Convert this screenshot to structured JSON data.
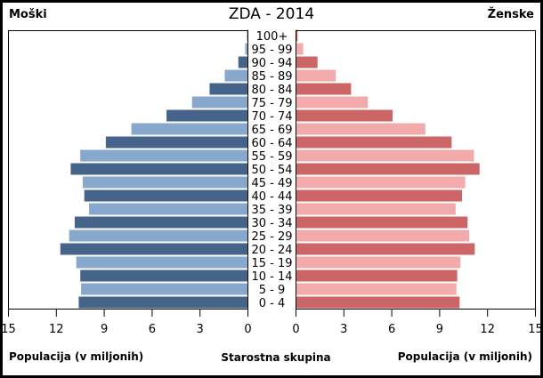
{
  "chart_data": {
    "type": "bar",
    "subtype": "population-pyramid",
    "title": "ZDA - 2014",
    "left_label": "Moški",
    "right_label": "Ženske",
    "xlabel_left": "Populacija (v miljonih)",
    "xlabel_center": "Starostna skupina",
    "xlabel_right": "Populacija (v miljonih)",
    "xlim": [
      0,
      15
    ],
    "xticks": [
      0,
      3,
      6,
      9,
      12,
      15
    ],
    "grid": false,
    "categories": [
      "100+",
      "95 - 99",
      "90 - 94",
      "85 - 89",
      "80 - 84",
      "75 - 79",
      "70 - 74",
      "65 - 69",
      "60 - 64",
      "55 - 59",
      "50 - 54",
      "45 - 49",
      "40 - 44",
      "35 - 39",
      "30 - 34",
      "25 - 29",
      "20 - 24",
      "15 - 19",
      "10 - 14",
      "5 - 9",
      "0 - 4"
    ],
    "series": [
      {
        "name": "Moški",
        "side": "left",
        "colors": [
          "#46648a",
          "#87a7cc"
        ],
        "values": [
          0.05,
          0.17,
          0.6,
          1.45,
          2.4,
          3.5,
          5.1,
          7.3,
          8.9,
          10.5,
          11.1,
          10.35,
          10.25,
          9.95,
          10.85,
          11.2,
          11.75,
          10.75,
          10.5,
          10.45,
          10.6
        ]
      },
      {
        "name": "Ženske",
        "side": "right",
        "colors": [
          "#cc6666",
          "#f2aaaa"
        ],
        "values": [
          0.1,
          0.45,
          1.35,
          2.5,
          3.45,
          4.5,
          6.05,
          8.1,
          9.75,
          11.15,
          11.5,
          10.6,
          10.4,
          10.0,
          10.75,
          10.85,
          11.2,
          10.3,
          10.1,
          10.05,
          10.25
        ]
      }
    ]
  }
}
